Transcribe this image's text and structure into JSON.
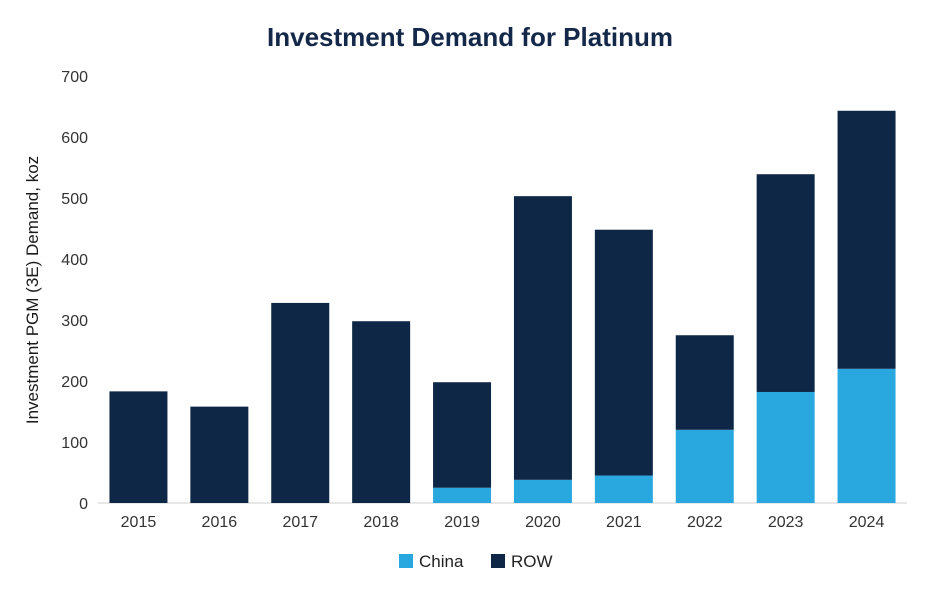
{
  "chart_data": {
    "type": "bar",
    "stacked": true,
    "title": "Investment Demand for Platinum",
    "xlabel": "",
    "ylabel": "Investment PGM (3E) Demand, koz",
    "ylim": [
      0,
      700
    ],
    "yticks": [
      0,
      100,
      200,
      300,
      400,
      500,
      600,
      700
    ],
    "categories": [
      "2015",
      "2016",
      "2017",
      "2018",
      "2019",
      "2020",
      "2021",
      "2022",
      "2023",
      "2024"
    ],
    "series": [
      {
        "name": "China",
        "color": "#29a8e0",
        "values": [
          0,
          0,
          0,
          0,
          25,
          38,
          45,
          120,
          182,
          220
        ]
      },
      {
        "name": "ROW",
        "color": "#0f2747",
        "values": [
          183,
          158,
          328,
          298,
          173,
          465,
          403,
          155,
          357,
          423
        ]
      }
    ],
    "legend_position": "bottom-center",
    "grid": false
  }
}
